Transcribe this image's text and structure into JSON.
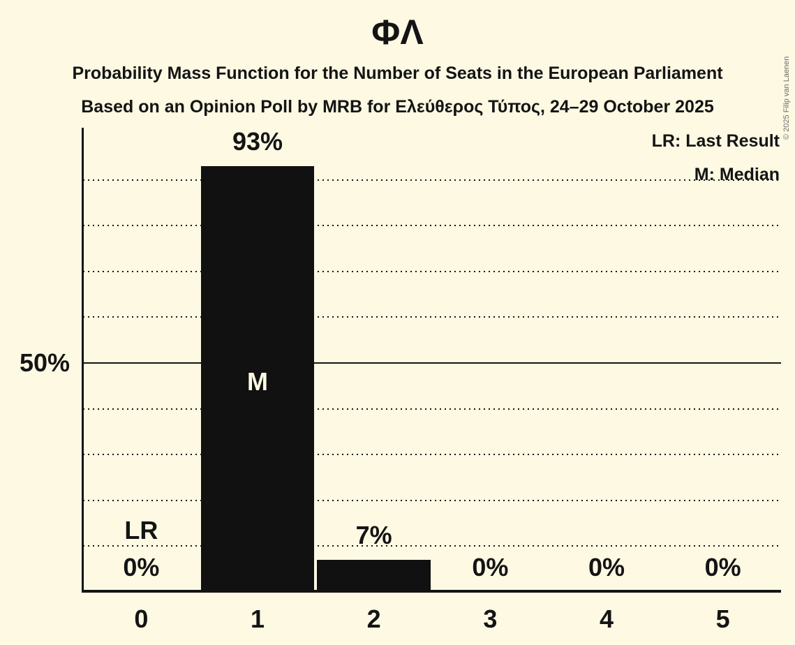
{
  "title": "ΦΛ",
  "subtitle1": "Probability Mass Function for the Number of Seats in the European Parliament",
  "subtitle2": "Based on an Opinion Poll by MRB for Ελεύθερος Τύπος, 24–29 October 2025",
  "copyright": "© 2025 Filip van Laenen",
  "legend": {
    "lr": "LR: Last Result",
    "m": "M: Median"
  },
  "y_axis": {
    "label": "50%",
    "value": 50
  },
  "colors": {
    "background": "#fdf9e3",
    "bar": "#111111",
    "text": "#141414",
    "copyright": "#6e6e6e"
  },
  "chart_data": {
    "type": "bar",
    "title": "ΦΛ",
    "categories": [
      "0",
      "1",
      "2",
      "3",
      "4",
      "5"
    ],
    "values": [
      0,
      93,
      7,
      0,
      0,
      0
    ],
    "value_labels": [
      "0%",
      "93%",
      "7%",
      "0%",
      "0%",
      "0%"
    ],
    "ylim": [
      0,
      100
    ],
    "gridlines_pct": [
      10,
      20,
      30,
      40,
      50,
      60,
      70,
      80,
      90
    ],
    "solid_gridline_pct": 50,
    "grid_style": "dotted",
    "legend_position": "top-right",
    "annotations": [
      {
        "category_index": 0,
        "text": "LR",
        "placement": "above-10pct"
      },
      {
        "category_index": 1,
        "text": "M",
        "placement": "bar-center"
      }
    ]
  }
}
